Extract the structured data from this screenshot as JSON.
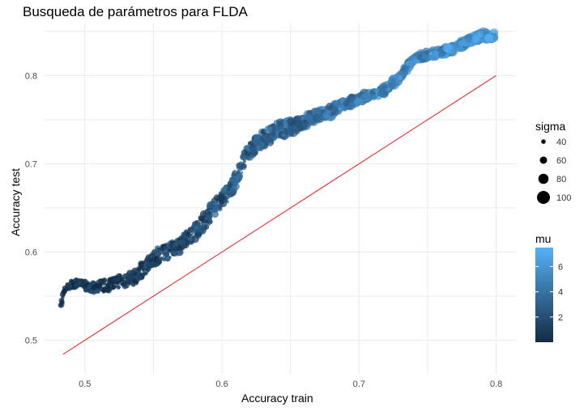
{
  "chart_data": {
    "type": "scatter",
    "title": "Busqueda de parámetros para FLDA",
    "xlabel": "Accuracy train",
    "ylabel": "Accuracy test",
    "xlim": [
      0.47,
      0.815
    ],
    "ylim": [
      0.462,
      0.86
    ],
    "x_ticks": [
      0.5,
      0.6,
      0.7,
      0.8
    ],
    "x_tick_labels": [
      "0.5",
      "0.6",
      "0.7",
      "0.8"
    ],
    "y_ticks": [
      0.5,
      0.6,
      0.7,
      0.8
    ],
    "y_tick_labels": [
      "0.5",
      "0.6",
      "0.7",
      "0.8"
    ],
    "grid": true,
    "reference_line": {
      "from": [
        0.484,
        0.484
      ],
      "to": [
        0.8,
        0.8
      ],
      "color": "#e41a1c"
    },
    "trend": [
      [
        0.482,
        0.538
      ],
      [
        0.486,
        0.562
      ],
      [
        0.495,
        0.565
      ],
      [
        0.505,
        0.56
      ],
      [
        0.515,
        0.562
      ],
      [
        0.525,
        0.566
      ],
      [
        0.535,
        0.57
      ],
      [
        0.545,
        0.585
      ],
      [
        0.555,
        0.598
      ],
      [
        0.565,
        0.602
      ],
      [
        0.575,
        0.615
      ],
      [
        0.585,
        0.632
      ],
      [
        0.595,
        0.65
      ],
      [
        0.605,
        0.668
      ],
      [
        0.612,
        0.69
      ],
      [
        0.62,
        0.715
      ],
      [
        0.63,
        0.728
      ],
      [
        0.64,
        0.737
      ],
      [
        0.65,
        0.741
      ],
      [
        0.66,
        0.748
      ],
      [
        0.67,
        0.755
      ],
      [
        0.68,
        0.76
      ],
      [
        0.69,
        0.768
      ],
      [
        0.7,
        0.774
      ],
      [
        0.71,
        0.778
      ],
      [
        0.72,
        0.785
      ],
      [
        0.73,
        0.8
      ],
      [
        0.74,
        0.818
      ],
      [
        0.75,
        0.823
      ],
      [
        0.76,
        0.826
      ],
      [
        0.77,
        0.832
      ],
      [
        0.78,
        0.84
      ],
      [
        0.79,
        0.845
      ],
      [
        0.8,
        0.846
      ]
    ],
    "legend_size": {
      "title": "sigma",
      "entries": [
        {
          "label": "40",
          "value": 40
        },
        {
          "label": "60",
          "value": 60
        },
        {
          "label": "80",
          "value": 80
        },
        {
          "label": "100",
          "value": 100
        }
      ],
      "position": "right"
    },
    "legend_color": {
      "title": "mu",
      "ticks": [
        "2",
        "4",
        "6"
      ],
      "tick_values": [
        2,
        4,
        6
      ],
      "range": [
        0,
        7.5
      ],
      "color_low": "#132b43",
      "color_high": "#56b1f7",
      "position": "right"
    }
  }
}
